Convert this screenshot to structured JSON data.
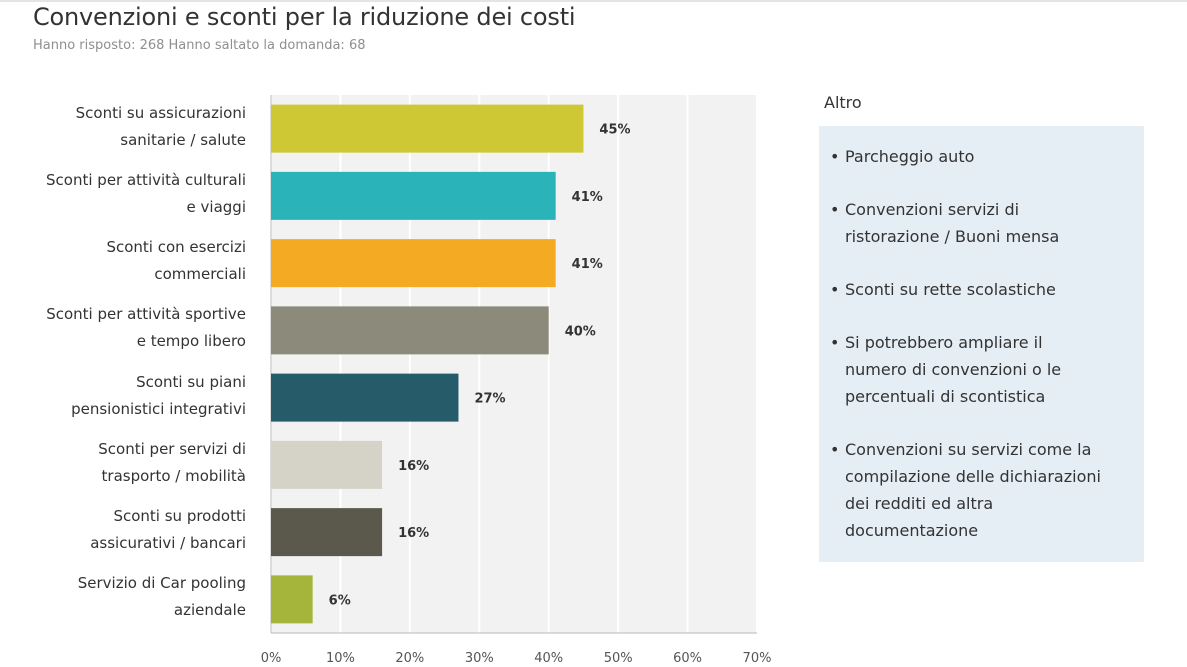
{
  "header": {
    "title": "Convenzioni e sconti per la riduzione dei costi",
    "subtitle": "Hanno risposto: 268 Hanno saltato la domanda: 68"
  },
  "chart_data": {
    "type": "bar",
    "orientation": "horizontal",
    "grid": true,
    "categories": [
      [
        "Sconti su assicurazioni",
        "sanitarie / salute"
      ],
      [
        "Sconti per attività culturali",
        "e viaggi"
      ],
      [
        "Sconti con esercizi",
        "commerciali"
      ],
      [
        "Sconti per attività sportive",
        "e tempo libero"
      ],
      [
        "Sconti su piani",
        "pensionistici integrativi"
      ],
      [
        "Sconti per servizi di",
        "trasporto / mobilità"
      ],
      [
        "Sconti su prodotti",
        "assicurativi / bancari"
      ],
      [
        "Servizio di Car pooling",
        "aziendale"
      ]
    ],
    "values": [
      45,
      41,
      41,
      40,
      27,
      16,
      16,
      6
    ],
    "value_labels": [
      "45%",
      "41%",
      "41%",
      "40%",
      "27%",
      "16%",
      "16%",
      "6%"
    ],
    "colors": [
      "#cdc833",
      "#2bb3ba",
      "#f4aa23",
      "#8b8a7b",
      "#265c6a",
      "#d5d3c8",
      "#5a594c",
      "#a5b53b"
    ],
    "xlim": [
      0,
      70
    ],
    "xticks": [
      0,
      10,
      20,
      30,
      40,
      50,
      60,
      70
    ],
    "xtick_labels": [
      "0%",
      "10%",
      "20%",
      "30%",
      "40%",
      "50%",
      "60%",
      "70%"
    ]
  },
  "sidebar": {
    "title": "Altro",
    "bullet": "•",
    "items": [
      [
        "Parcheggio auto"
      ],
      [
        "Convenzioni servizi di",
        "ristorazione / Buoni mensa"
      ],
      [
        "Sconti su rette scolastiche"
      ],
      [
        "Si potrebbero ampliare il",
        "numero di convenzioni o le",
        "percentuali di scontistica"
      ],
      [
        "Convenzioni su servizi come la",
        "compilazione delle dichiarazioni",
        "dei redditi ed altra",
        "documentazione"
      ]
    ]
  }
}
